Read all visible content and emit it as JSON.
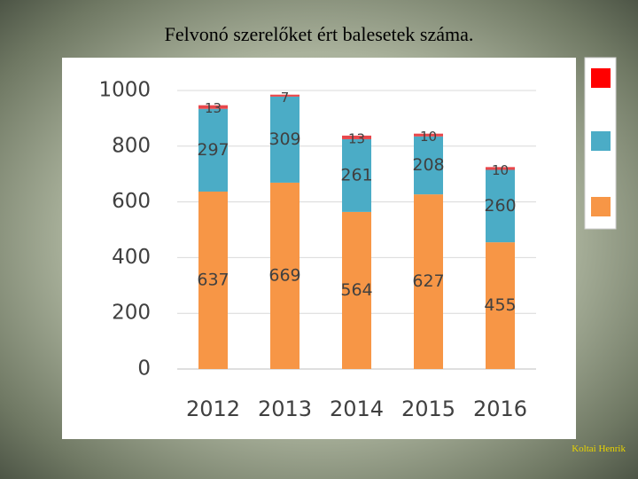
{
  "title": "Felvonó szerelőket ért balesetek száma.",
  "footer": "Koltai Henrik",
  "chart_data": {
    "type": "stacked-bar",
    "categories": [
      "2012",
      "2013",
      "2014",
      "2015",
      "2016"
    ],
    "series": [
      {
        "color": "#f79646",
        "values": [
          637,
          669,
          564,
          627,
          455
        ]
      },
      {
        "color": "#4bacc6",
        "values": [
          297,
          309,
          261,
          208,
          260
        ]
      },
      {
        "color": "#e8474b",
        "values": [
          13,
          7,
          13,
          10,
          10
        ]
      }
    ],
    "legend_colors": [
      "#ff0000",
      "#4bacc6",
      "#f79646"
    ],
    "ylim": [
      0,
      1000
    ],
    "yticks": [
      0,
      200,
      400,
      600,
      800,
      1000
    ],
    "grid": true
  }
}
